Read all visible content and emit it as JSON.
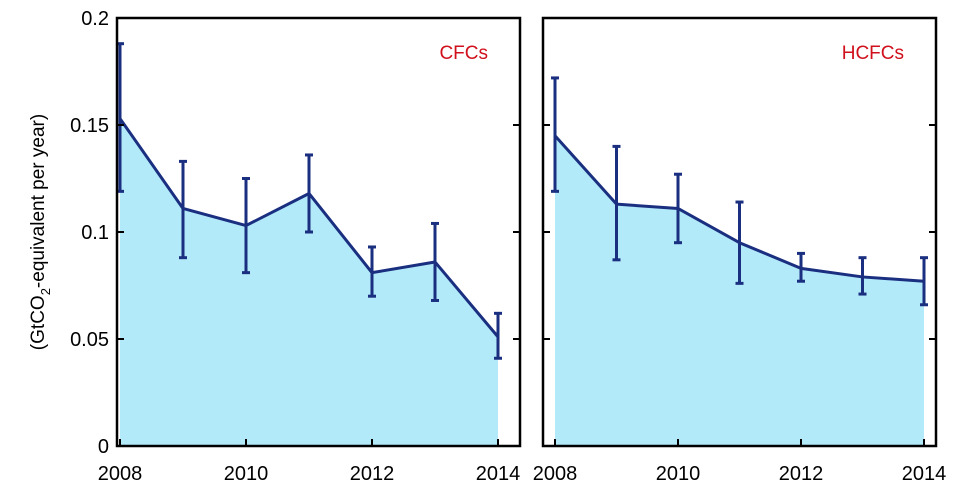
{
  "chart_data": [
    {
      "type": "area",
      "panel_label": "CFCs",
      "x": [
        2008,
        2009,
        2010,
        2011,
        2012,
        2013,
        2014
      ],
      "values": [
        0.153,
        0.111,
        0.103,
        0.118,
        0.081,
        0.086,
        0.051
      ],
      "error_low": [
        0.119,
        0.088,
        0.081,
        0.1,
        0.07,
        0.068,
        0.041
      ],
      "error_high": [
        0.188,
        0.133,
        0.125,
        0.136,
        0.093,
        0.104,
        0.062
      ],
      "xlim": [
        2008,
        2014
      ],
      "ylim": [
        0,
        0.2
      ],
      "xticks": [
        "2008",
        "2010",
        "2012",
        "2014"
      ],
      "yticks": [
        "0",
        "0.05",
        "0.1",
        "0.15",
        "0.2"
      ],
      "grid": false
    },
    {
      "type": "area",
      "panel_label": "HCFCs",
      "x": [
        2008,
        2009,
        2010,
        2011,
        2012,
        2013,
        2014
      ],
      "values": [
        0.145,
        0.113,
        0.111,
        0.095,
        0.083,
        0.079,
        0.077
      ],
      "error_low": [
        0.119,
        0.087,
        0.095,
        0.076,
        0.077,
        0.071,
        0.066
      ],
      "error_high": [
        0.172,
        0.14,
        0.127,
        0.114,
        0.09,
        0.088,
        0.088
      ],
      "xlim": [
        2008,
        2014
      ],
      "ylim": [
        0,
        0.2
      ],
      "xticks": [
        "2008",
        "2010",
        "2012",
        "2014"
      ],
      "yticks": [],
      "grid": false
    }
  ],
  "ylabel": {
    "prefix": "(GtCO",
    "subscript": "2",
    "suffix": "-equivalent per year)"
  },
  "colors": {
    "fill": "#b3eafa",
    "line": "#1a2f80",
    "label": "#d0101c",
    "axis": "#000000"
  }
}
